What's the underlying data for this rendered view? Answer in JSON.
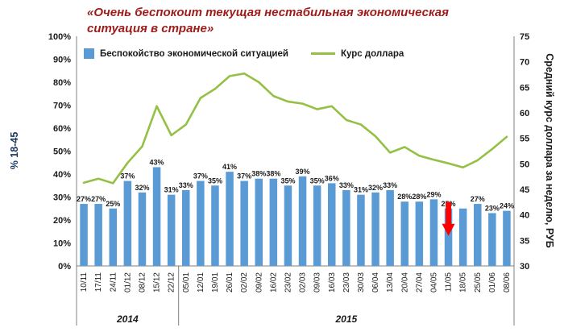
{
  "title": {
    "line1": "«Очень беспокоит текущая нестабильная экономическая",
    "line2": "ситуация в стране»"
  },
  "legend": {
    "bars": "Беспокойство экономической ситуацией",
    "line": "Курс доллара"
  },
  "left_axis": {
    "title": "% 18-45",
    "min": 0,
    "max": 100,
    "step": 10,
    "ticks": [
      "0%",
      "10%",
      "20%",
      "30%",
      "40%",
      "50%",
      "60%",
      "70%",
      "80%",
      "90%",
      "100%"
    ]
  },
  "right_axis": {
    "title": "Средний курс доллара за неделю, РУБ",
    "min": 30,
    "max": 75,
    "step": 5,
    "ticks": [
      "30",
      "35",
      "40",
      "45",
      "50",
      "55",
      "60",
      "65",
      "70",
      "75"
    ]
  },
  "colors": {
    "bar": "#5B9BD5",
    "line": "#94C045",
    "title": "#9E1B1B",
    "left_axis_title": "#17375E",
    "axis_line": "#808080",
    "arrow": "#FF0000",
    "text": "#1a1a1a"
  },
  "chart_data": {
    "type": "combo",
    "categories": [
      "10/11",
      "17/11",
      "24/11",
      "01/12",
      "08/12",
      "15/12",
      "22/12",
      "05/01",
      "12/01",
      "19/01",
      "26/01",
      "02/02",
      "09/02",
      "16/02",
      "23/02",
      "02/03",
      "09/03",
      "16/03",
      "23/03",
      "30/03",
      "06/04",
      "13/04",
      "20/04",
      "27/04",
      "04/05",
      "11/05",
      "18/05",
      "25/05",
      "01/06",
      "08/06"
    ],
    "series": [
      {
        "name": "Беспокойство экономической ситуацией",
        "type": "bar",
        "axis": "left",
        "unit": "%",
        "values": [
          27,
          27,
          25,
          37,
          32,
          43,
          31,
          33,
          37,
          35,
          41,
          37,
          38,
          38,
          35,
          39,
          35,
          36,
          33,
          31,
          32,
          33,
          28,
          28,
          29,
          25,
          25,
          27,
          23,
          24
        ],
        "hidden_labels": [
          "18/05"
        ]
      },
      {
        "name": "Курс доллара",
        "type": "line",
        "axis": "right",
        "unit": "РУБ",
        "values": [
          46.3,
          47.1,
          46.2,
          50.2,
          53.4,
          61.3,
          55.6,
          57.7,
          62.9,
          64.7,
          67.2,
          67.7,
          66.0,
          63.3,
          62.2,
          61.8,
          60.7,
          61.3,
          58.6,
          57.7,
          55.4,
          52.2,
          53.3,
          51.6,
          50.8,
          50.1,
          49.3,
          50.7,
          52.9,
          55.3
        ]
      }
    ],
    "annotations": [
      {
        "type": "arrow-down",
        "category": "11/05",
        "color": "#FF0000"
      }
    ],
    "group_labels": [
      {
        "label": "2014",
        "span": [
          0,
          6
        ]
      },
      {
        "label": "2015",
        "span": [
          7,
          29
        ]
      }
    ],
    "ylim_left": [
      0,
      100
    ],
    "ylim_right": [
      30,
      75
    ],
    "grid": false,
    "legend_position": "top-inside"
  }
}
